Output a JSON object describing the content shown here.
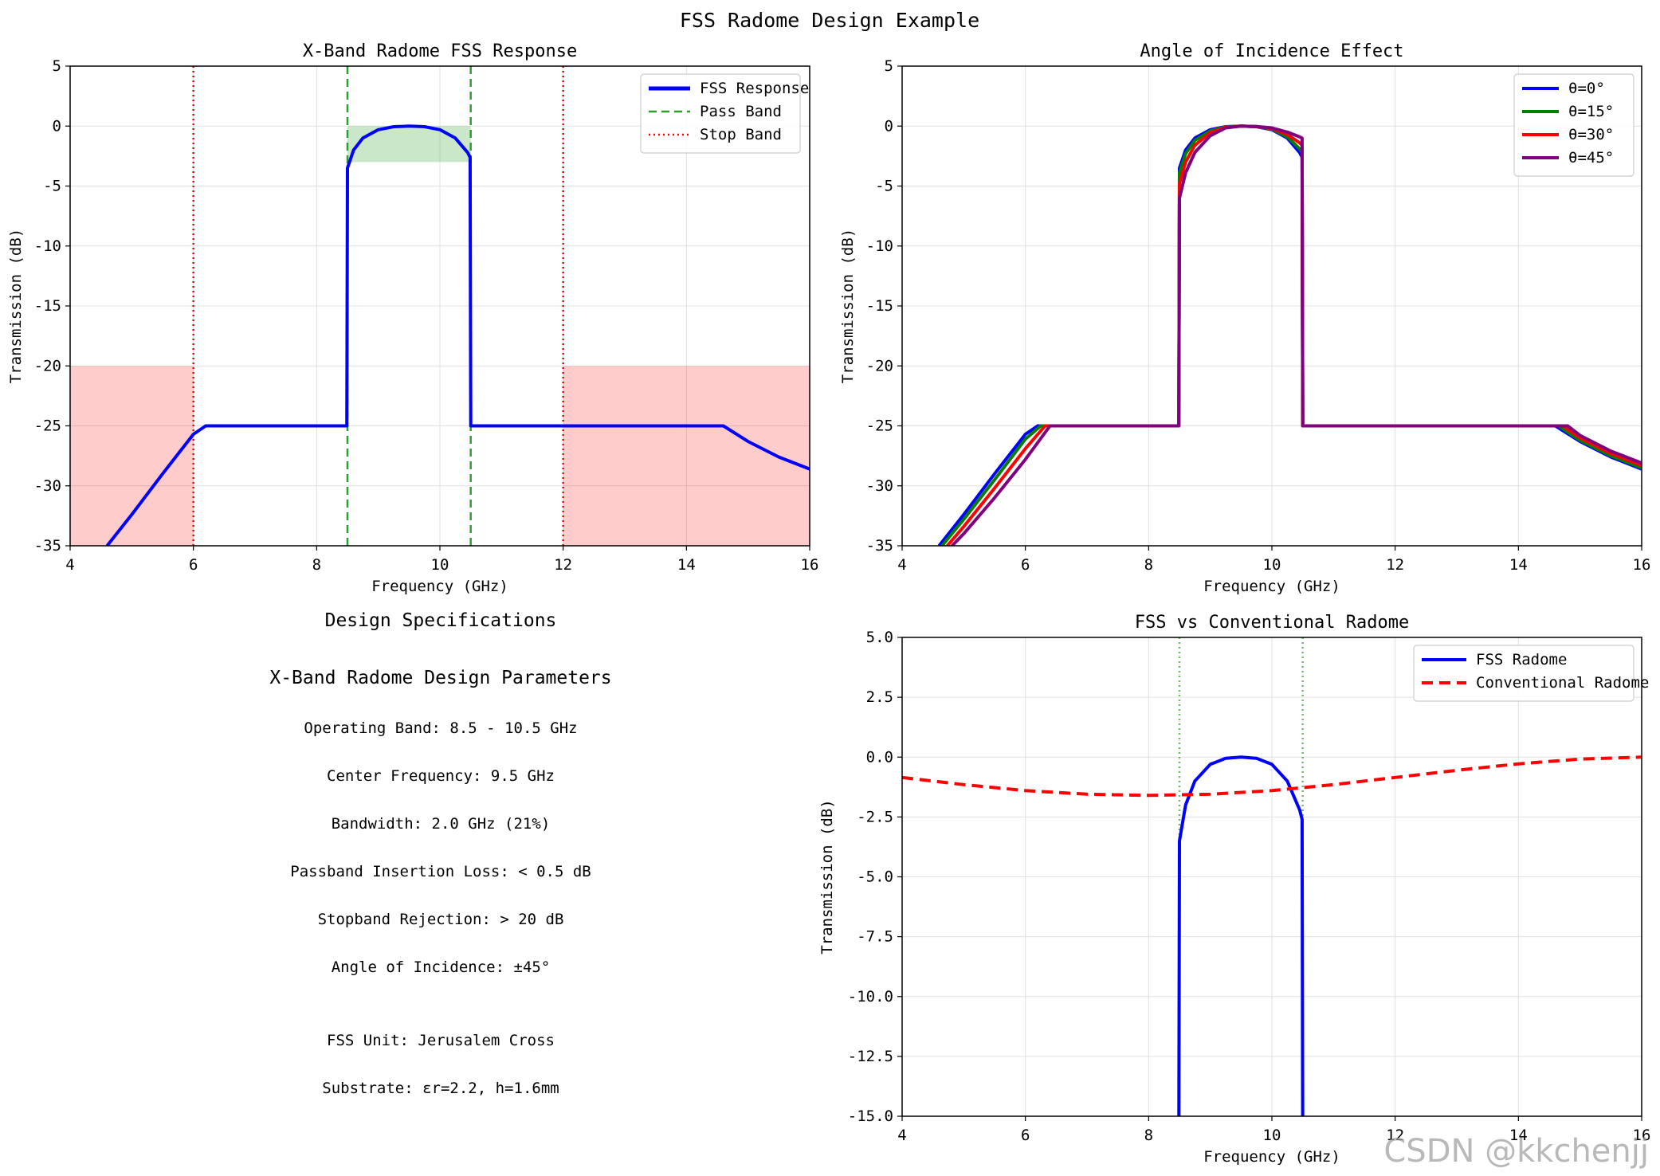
{
  "figure_title": "FSS Radome Design Example",
  "watermark": "CSDN @kkchenjj",
  "specs": {
    "title": "Design Specifications",
    "heading": "X-Band Radome Design Parameters",
    "lines": [
      "Operating Band: 8.5 - 10.5 GHz",
      "Center Frequency: 9.5 GHz",
      "Bandwidth: 2.0 GHz (21%)",
      "Passband Insertion Loss: < 0.5 dB",
      "Stopband Rejection: > 20 dB",
      "Angle of Incidence: ±45°",
      "FSS Unit: Jerusalem Cross",
      "Substrate: εr=2.2, h=1.6mm"
    ]
  },
  "colors": {
    "fss": "#0000ff",
    "pass_band": "#2ca02c",
    "stop_band": "#ff0000",
    "theta0": "#0000ff",
    "theta15": "#007f00",
    "theta30": "#ff0000",
    "theta45": "#800080",
    "conventional": "#ff0000"
  },
  "chart_data": [
    {
      "id": "c1",
      "type": "line",
      "title": "X-Band Radome FSS Response",
      "xlabel": "Frequency (GHz)",
      "ylabel": "Transmission (dB)",
      "xlim": [
        4,
        16
      ],
      "ylim": [
        -35,
        5
      ],
      "xticks": [
        4,
        6,
        8,
        10,
        12,
        14,
        16
      ],
      "yticks": [
        5,
        0,
        -5,
        -10,
        -15,
        -20,
        -25,
        -30,
        -35
      ],
      "grid": true,
      "legend_position": "top-right",
      "legend": [
        "FSS Response",
        "Pass Band",
        "Stop Band"
      ],
      "pass_band": [
        8.5,
        10.5
      ],
      "pass_band_fill": [
        -3,
        0
      ],
      "stop_band_edges": [
        6,
        12
      ],
      "stop_band_fill": [
        {
          "x": [
            4,
            6
          ],
          "y": [
            -35,
            -20
          ]
        },
        {
          "x": [
            12,
            16
          ],
          "y": [
            -35,
            -20
          ]
        }
      ],
      "series": [
        {
          "name": "FSS Response",
          "color": "#0000ff",
          "x": [
            4.6,
            5.0,
            5.5,
            6.0,
            6.2,
            7.0,
            8.0,
            8.49,
            8.5,
            8.6,
            8.75,
            9.0,
            9.25,
            9.5,
            9.75,
            10.0,
            10.25,
            10.45,
            10.49,
            10.5,
            11.0,
            12.0,
            13.0,
            14.0,
            14.6,
            15.0,
            15.5,
            16.0
          ],
          "y": [
            -35,
            -32.4,
            -29.0,
            -25.7,
            -25,
            -25,
            -25,
            -25,
            -3.5,
            -2.0,
            -1.0,
            -0.3,
            -0.05,
            0,
            -0.05,
            -0.3,
            -1.0,
            -2.2,
            -2.6,
            -25,
            -25,
            -25,
            -25,
            -25,
            -25,
            -26.3,
            -27.6,
            -28.6
          ]
        }
      ]
    },
    {
      "id": "c2",
      "type": "line",
      "title": "Angle of Incidence Effect",
      "xlabel": "Frequency (GHz)",
      "ylabel": "Transmission (dB)",
      "xlim": [
        4,
        16
      ],
      "ylim": [
        -35,
        5
      ],
      "xticks": [
        4,
        6,
        8,
        10,
        12,
        14,
        16
      ],
      "yticks": [
        5,
        0,
        -5,
        -10,
        -15,
        -20,
        -25,
        -30,
        -35
      ],
      "grid": true,
      "legend_position": "top-right",
      "series": [
        {
          "name": "θ=0°",
          "color": "#0000ff",
          "x": [
            4.6,
            5.0,
            5.5,
            6.0,
            6.2,
            7.0,
            8.0,
            8.49,
            8.5,
            8.6,
            8.75,
            9.0,
            9.25,
            9.5,
            9.75,
            10.0,
            10.25,
            10.45,
            10.49,
            10.5,
            11.0,
            12.0,
            13.0,
            14.0,
            14.6,
            15.0,
            15.5,
            16.0
          ],
          "y": [
            -35,
            -32.4,
            -29.0,
            -25.7,
            -25,
            -25,
            -25,
            -25,
            -3.5,
            -2.0,
            -1.0,
            -0.3,
            -0.05,
            0,
            -0.05,
            -0.3,
            -1.0,
            -2.2,
            -2.6,
            -25,
            -25,
            -25,
            -25,
            -25,
            -25,
            -26.3,
            -27.6,
            -28.6
          ]
        },
        {
          "name": "θ=15°",
          "color": "#007f00",
          "x": [
            4.6,
            5.0,
            5.5,
            6.0,
            6.25,
            7.0,
            8.0,
            8.49,
            8.5,
            8.6,
            8.75,
            9.0,
            9.25,
            9.5,
            9.75,
            10.0,
            10.25,
            10.45,
            10.49,
            10.5,
            11.0,
            12.0,
            13.0,
            14.0,
            14.65,
            15.0,
            15.5,
            16.0
          ],
          "y": [
            -35.3,
            -32.8,
            -29.5,
            -26.1,
            -25,
            -25,
            -25,
            -25,
            -3.9,
            -2.3,
            -1.2,
            -0.4,
            -0.07,
            0,
            -0.05,
            -0.25,
            -0.9,
            -1.9,
            -2.2,
            -25,
            -25,
            -25,
            -25,
            -25,
            -25,
            -26.2,
            -27.5,
            -28.5
          ]
        },
        {
          "name": "θ=30°",
          "color": "#ff0000",
          "x": [
            4.6,
            5.0,
            5.5,
            6.0,
            6.32,
            7.0,
            8.0,
            8.49,
            8.5,
            8.6,
            8.75,
            9.0,
            9.25,
            9.5,
            9.75,
            10.0,
            10.25,
            10.45,
            10.49,
            10.5,
            11.0,
            12.0,
            13.0,
            14.0,
            14.72,
            15.0,
            15.5,
            16.0
          ],
          "y": [
            -35.8,
            -33.4,
            -30.2,
            -26.9,
            -25,
            -25,
            -25,
            -25,
            -4.8,
            -3.0,
            -1.6,
            -0.55,
            -0.1,
            0,
            -0.04,
            -0.2,
            -0.7,
            -1.4,
            -1.6,
            -25,
            -25,
            -25,
            -25,
            -25,
            -25,
            -26.0,
            -27.3,
            -28.3
          ]
        },
        {
          "name": "θ=45°",
          "color": "#800080",
          "x": [
            4.7,
            5.0,
            5.5,
            6.0,
            6.4,
            7.0,
            8.0,
            8.49,
            8.5,
            8.6,
            8.75,
            9.0,
            9.25,
            9.5,
            9.75,
            10.0,
            10.25,
            10.45,
            10.49,
            10.5,
            11.0,
            12.0,
            13.0,
            14.0,
            14.8,
            15.0,
            15.5,
            16.0
          ],
          "y": [
            -35.6,
            -34.0,
            -31.0,
            -27.8,
            -25,
            -25,
            -25,
            -25,
            -6.0,
            -3.9,
            -2.2,
            -0.8,
            -0.15,
            0,
            -0.03,
            -0.15,
            -0.5,
            -0.9,
            -1.0,
            -25,
            -25,
            -25,
            -25,
            -25,
            -25,
            -25.8,
            -27.1,
            -28.1
          ]
        }
      ]
    },
    {
      "id": "c3",
      "type": "line",
      "title": "FSS vs Conventional Radome",
      "xlabel": "Frequency (GHz)",
      "ylabel": "Transmission (dB)",
      "xlim": [
        4,
        16
      ],
      "ylim": [
        -15,
        5
      ],
      "xticks": [
        4,
        6,
        8,
        10,
        12,
        14,
        16
      ],
      "yticks": [
        5.0,
        2.5,
        0.0,
        -2.5,
        -5.0,
        -7.5,
        -10.0,
        -12.5,
        -15.0
      ],
      "grid": true,
      "legend_position": "top-right",
      "band_markers": [
        8.5,
        10.5
      ],
      "series": [
        {
          "name": "FSS Radome",
          "color": "#0000ff",
          "dash": "solid",
          "x": [
            8.49,
            8.5,
            8.6,
            8.75,
            9.0,
            9.25,
            9.5,
            9.75,
            10.0,
            10.25,
            10.45,
            10.49,
            10.5
          ],
          "y": [
            -16,
            -3.5,
            -2.0,
            -1.0,
            -0.3,
            -0.05,
            0,
            -0.05,
            -0.3,
            -1.0,
            -2.2,
            -2.6,
            -16
          ]
        },
        {
          "name": "Conventional Radome",
          "color": "#ff0000",
          "dash": "dashed",
          "x": [
            4,
            5,
            6,
            7,
            8,
            9,
            10,
            11,
            12,
            13,
            14,
            15,
            16
          ],
          "y": [
            -0.85,
            -1.15,
            -1.4,
            -1.55,
            -1.6,
            -1.55,
            -1.4,
            -1.15,
            -0.85,
            -0.55,
            -0.28,
            -0.08,
            0.0
          ]
        }
      ]
    }
  ]
}
